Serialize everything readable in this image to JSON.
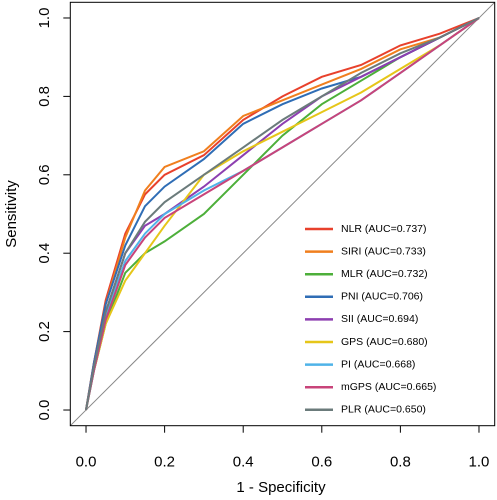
{
  "chart_data": {
    "type": "line",
    "xlabel": "1 - Specificity",
    "ylabel": "Sensitivity",
    "x": [
      0,
      0.02,
      0.05,
      0.1,
      0.15,
      0.2,
      0.3,
      0.4,
      0.5,
      0.6,
      0.7,
      0.8,
      0.9,
      1
    ],
    "series": [
      {
        "name": "NLR (AUC=0.737)",
        "color": "#e8412c",
        "values": [
          0,
          0.12,
          0.28,
          0.45,
          0.55,
          0.6,
          0.65,
          0.74,
          0.8,
          0.85,
          0.88,
          0.93,
          0.96,
          1
        ]
      },
      {
        "name": "SIRI (AUC=0.733)",
        "color": "#f07f1e",
        "values": [
          0,
          0.12,
          0.27,
          0.44,
          0.56,
          0.62,
          0.66,
          0.75,
          0.79,
          0.83,
          0.87,
          0.92,
          0.95,
          1
        ]
      },
      {
        "name": "MLR (AUC=0.732)",
        "color": "#4daf3a",
        "values": [
          0,
          0.1,
          0.22,
          0.35,
          0.4,
          0.43,
          0.5,
          0.6,
          0.7,
          0.78,
          0.84,
          0.9,
          0.95,
          1
        ]
      },
      {
        "name": "PNI (AUC=0.706)",
        "color": "#2f6db5",
        "values": [
          0,
          0.12,
          0.27,
          0.42,
          0.52,
          0.57,
          0.64,
          0.73,
          0.78,
          0.82,
          0.85,
          0.9,
          0.95,
          1
        ]
      },
      {
        "name": "SII (AUC=0.694)",
        "color": "#8d3fb0",
        "values": [
          0,
          0.11,
          0.25,
          0.4,
          0.47,
          0.5,
          0.57,
          0.65,
          0.73,
          0.8,
          0.85,
          0.9,
          0.95,
          1
        ]
      },
      {
        "name": "GPS (AUC=0.680)",
        "color": "#e6c619",
        "values": [
          0,
          0.1,
          0.22,
          0.33,
          0.4,
          0.47,
          0.6,
          0.66,
          0.71,
          0.76,
          0.81,
          0.87,
          0.93,
          1
        ]
      },
      {
        "name": "PI (AUC=0.668)",
        "color": "#4fb3e8",
        "values": [
          0,
          0.1,
          0.24,
          0.38,
          0.45,
          0.5,
          0.56,
          0.61,
          0.67,
          0.73,
          0.79,
          0.86,
          0.93,
          1
        ]
      },
      {
        "name": "mGPS (AUC=0.665)",
        "color": "#c8447a",
        "values": [
          0,
          0.1,
          0.23,
          0.37,
          0.44,
          0.49,
          0.55,
          0.61,
          0.67,
          0.73,
          0.79,
          0.86,
          0.93,
          1
        ]
      },
      {
        "name": "PLR (AUC=0.650)",
        "color": "#6b7b7b",
        "values": [
          0,
          0.11,
          0.25,
          0.4,
          0.48,
          0.53,
          0.6,
          0.67,
          0.74,
          0.8,
          0.86,
          0.91,
          0.95,
          1
        ]
      }
    ],
    "xlim": [
      -0.04,
      1.04
    ],
    "ylim": [
      -0.04,
      1.04
    ],
    "xticks": [
      {
        "value": 0,
        "label": "0.0"
      },
      0.2,
      0.4,
      0.6,
      0.8,
      {
        "value": 1,
        "label": "1.0"
      }
    ],
    "yticks": [
      {
        "value": 0,
        "label": "0.0"
      },
      0.2,
      0.4,
      0.6,
      0.8,
      {
        "value": 1,
        "label": "1.0"
      }
    ]
  }
}
